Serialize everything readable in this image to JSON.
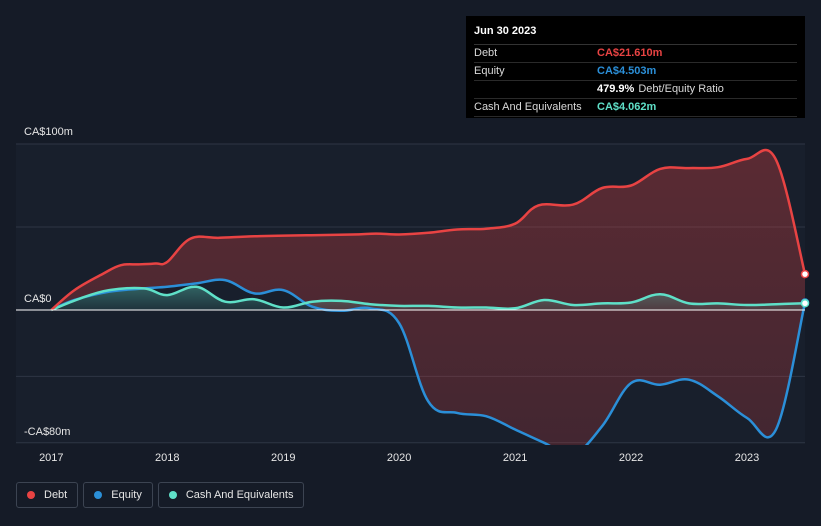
{
  "chart_data": {
    "type": "line",
    "title": "",
    "x_ticks": [
      "2017",
      "2018",
      "2019",
      "2020",
      "2021",
      "2022",
      "2023"
    ],
    "x_tick_values": [
      2017,
      2018,
      2019,
      2020,
      2021,
      2022,
      2023
    ],
    "xlim": [
      2016.98,
      2023.5
    ],
    "ylim": [
      -80,
      100
    ],
    "y_labels": {
      "top": "CA$100m",
      "zero": "CA$0",
      "bottom": "-CA$80m"
    },
    "gridlines": [
      -80,
      -40,
      0,
      50,
      100
    ],
    "series": [
      {
        "name": "Debt",
        "color": "#e84343",
        "x": [
          2017.0,
          2017.2,
          2017.45,
          2017.6,
          2017.75,
          2017.9,
          2018.0,
          2018.2,
          2018.45,
          2018.8,
          2019.2,
          2019.6,
          2019.8,
          2020.0,
          2020.25,
          2020.5,
          2020.75,
          2021.0,
          2021.2,
          2021.5,
          2021.75,
          2022.0,
          2022.25,
          2022.5,
          2022.75,
          2023.0,
          2023.25,
          2023.5
        ],
        "values": [
          0.0,
          12.0,
          22.0,
          27.0,
          27.5,
          28.0,
          29.0,
          43.0,
          43.5,
          44.5,
          45.0,
          45.5,
          46.0,
          45.5,
          46.5,
          48.5,
          49.0,
          52.0,
          63.0,
          63.5,
          73.5,
          75.0,
          85.0,
          85.5,
          86.0,
          91.0,
          90.5,
          21.61
        ]
      },
      {
        "name": "Equity",
        "color": "#2b8fd8",
        "x": [
          2017.0,
          2017.2,
          2017.5,
          2017.8,
          2018.0,
          2018.25,
          2018.5,
          2018.75,
          2019.0,
          2019.25,
          2019.5,
          2019.75,
          2020.0,
          2020.25,
          2020.5,
          2020.75,
          2021.0,
          2021.25,
          2021.5,
          2021.75,
          2022.0,
          2022.25,
          2022.5,
          2022.75,
          2023.0,
          2023.25,
          2023.5
        ],
        "values": [
          0.0,
          6.0,
          11.0,
          13.0,
          14.0,
          16.0,
          18.0,
          10.0,
          12.0,
          2.0,
          -0.5,
          1.0,
          -8.0,
          -55.0,
          -62.0,
          -64.0,
          -72.0,
          -80.0,
          -87.0,
          -70.0,
          -44.0,
          -45.0,
          -42.0,
          -52.0,
          -65.0,
          -72.0,
          4.503
        ]
      },
      {
        "name": "Cash And Equivalents",
        "color": "#5fe0c8",
        "x": [
          2017.0,
          2017.25,
          2017.5,
          2017.8,
          2018.0,
          2018.25,
          2018.5,
          2018.75,
          2019.0,
          2019.25,
          2019.5,
          2019.75,
          2020.0,
          2020.25,
          2020.5,
          2020.75,
          2021.0,
          2021.25,
          2021.5,
          2021.75,
          2022.0,
          2022.25,
          2022.5,
          2022.75,
          2023.0,
          2023.25,
          2023.5
        ],
        "values": [
          0.0,
          7.0,
          12.0,
          13.0,
          9.0,
          14.0,
          5.0,
          6.5,
          1.5,
          5.0,
          5.5,
          3.5,
          2.5,
          2.5,
          1.5,
          1.5,
          1.0,
          6.0,
          3.0,
          4.0,
          4.5,
          9.5,
          4.0,
          4.0,
          3.0,
          3.5,
          4.062
        ]
      }
    ]
  },
  "tooltip": {
    "date": "Jun 30 2023",
    "rows": [
      {
        "label": "Debt",
        "value": "CA$21.610m",
        "color": "#e84343"
      },
      {
        "label": "Equity",
        "value": "CA$4.503m",
        "color": "#2b8fd8"
      },
      {
        "label": "",
        "value": "479.9%",
        "rest": "Debt/Equity Ratio",
        "color": "#ffffff"
      },
      {
        "label": "Cash And Equivalents",
        "value": "CA$4.062m",
        "color": "#5fe0c8"
      }
    ]
  },
  "legend": [
    {
      "label": "Debt",
      "color": "#e84343"
    },
    {
      "label": "Equity",
      "color": "#2b8fd8"
    },
    {
      "label": "Cash And Equivalents",
      "color": "#5fe0c8"
    }
  ]
}
